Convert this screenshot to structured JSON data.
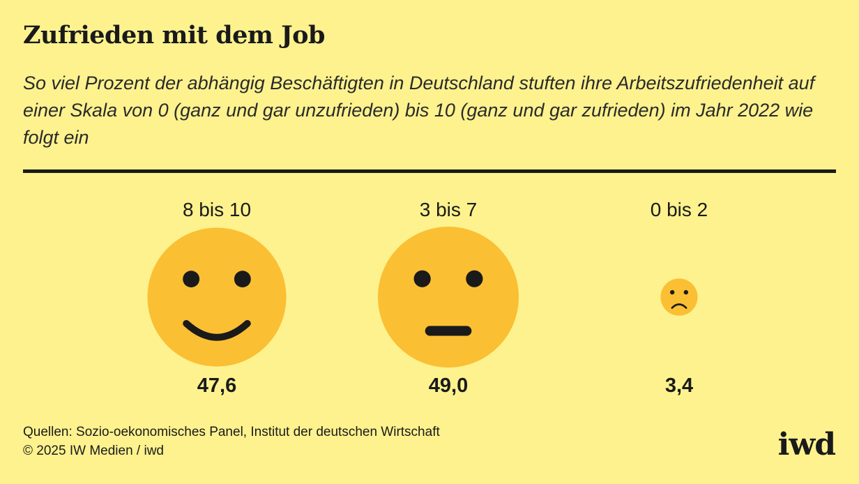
{
  "title": "Zufrieden mit dem Job",
  "subtitle": "So viel Prozent der abhängig Beschäftigten in Deutschland stuften ihre Arbeits­zufriedenheit auf einer Skala von 0 (ganz und gar unzufrieden) bis 10 (ganz und gar zufrieden) im Jahr 2022 wie folgt ein",
  "footer": {
    "sources": "Quellen: Sozio-oekonomisches Panel, Institut der deutschen Wirtschaft",
    "copyright": "© 2025 IW Medien / iwd"
  },
  "logo": "iwd",
  "colors": {
    "background": "#FDF28E",
    "face": "#FBBF33",
    "features": "#1a1a1a"
  },
  "chart_data": {
    "type": "bubble",
    "unit": "%",
    "categories": [
      "8 bis 10",
      "3 bis 7",
      "0 bis 2"
    ],
    "values": [
      47.6,
      49.0,
      3.4
    ],
    "value_labels": [
      "47,6",
      "49,0",
      "3,4"
    ],
    "icons": [
      "smiling-face-icon",
      "neutral-face-icon",
      "frowning-face-icon"
    ]
  }
}
